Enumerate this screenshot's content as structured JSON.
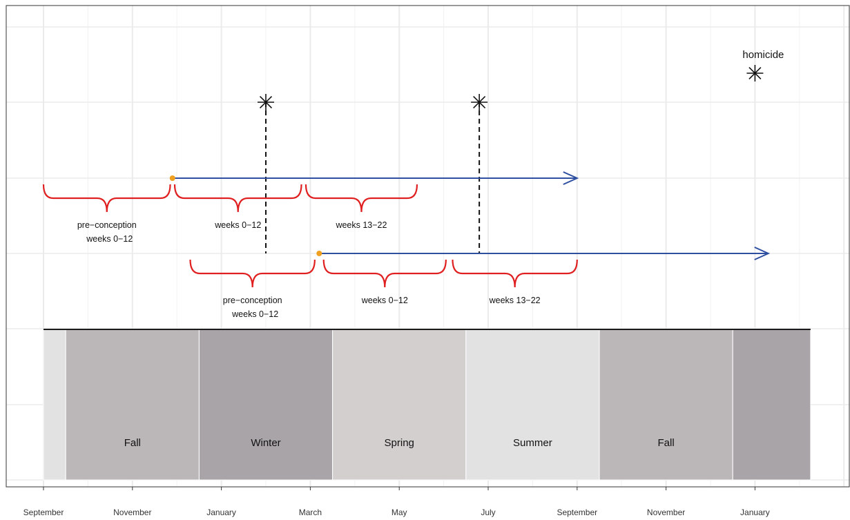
{
  "chart_data": {
    "type": "timeline",
    "x_axis": {
      "tick_labels": [
        "September",
        "November",
        "January",
        "March",
        "May",
        "July",
        "September",
        "November",
        "January"
      ],
      "tick_months": [
        0,
        2,
        4,
        6,
        8,
        10,
        12,
        14,
        16
      ],
      "range_months": [
        -0.8,
        17.9
      ]
    },
    "grid": true,
    "seasons": [
      {
        "label": "",
        "start": 0.0,
        "end": 0.5,
        "color": "#e3e2e3"
      },
      {
        "label": "Fall",
        "start": 0.5,
        "end": 3.5,
        "color": "#bbb7b8"
      },
      {
        "label": "Winter",
        "start": 3.5,
        "end": 6.5,
        "color": "#a8a4a7"
      },
      {
        "label": "Spring",
        "start": 6.5,
        "end": 9.5,
        "color": "#d3cfcf"
      },
      {
        "label": "Summer",
        "start": 9.5,
        "end": 12.5,
        "color": "#e3e2e3"
      },
      {
        "label": "Fall",
        "start": 12.5,
        "end": 15.5,
        "color": "#bbb7b8"
      },
      {
        "label": "",
        "start": 15.5,
        "end": 17.25,
        "color": "#a8a4a7"
      }
    ],
    "pregnancies": [
      {
        "conception": 2.9,
        "arrow_end": 12.0,
        "homicide": 5.0,
        "periods": [
          {
            "label": "pre−conception weeks 0−12",
            "start": 0.0,
            "end": 2.85
          },
          {
            "label": "weeks 0−12",
            "start": 2.95,
            "end": 5.8
          },
          {
            "label": "weeks 13−22",
            "start": 5.9,
            "end": 8.4
          }
        ]
      },
      {
        "conception": 6.2,
        "arrow_end": 16.3,
        "homicide": 9.8,
        "periods": [
          {
            "label": "pre−conception weeks 0−12",
            "start": 3.3,
            "end": 6.1
          },
          {
            "label": "weeks 0−12",
            "start": 6.3,
            "end": 9.05
          },
          {
            "label": "weeks 13−22",
            "start": 9.2,
            "end": 12.0
          }
        ]
      }
    ],
    "legend": {
      "label": "homicide",
      "placement": "top-right"
    },
    "colors": {
      "arrow": "#2e4ea0",
      "brace": "#e02020",
      "conception_dot": "#f0a020",
      "homicide_marker": "#111111",
      "grid_major": "#ebebeb",
      "grid_minor": "#f3f3f3",
      "panel_border": "#333333",
      "baseline": "#1a1a1a"
    }
  }
}
